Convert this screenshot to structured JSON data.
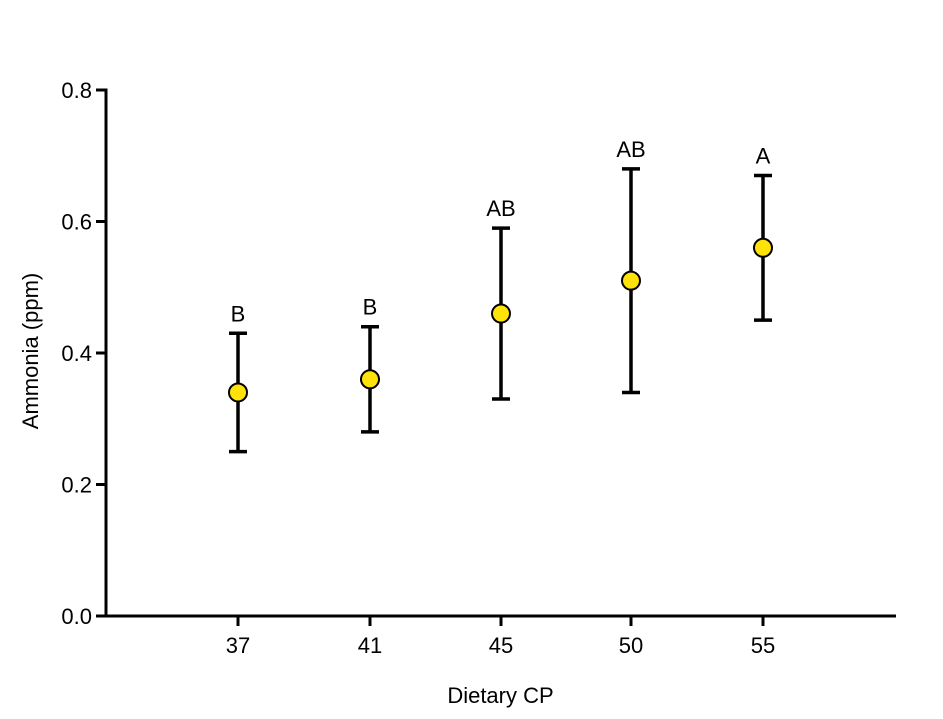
{
  "chart_data": {
    "type": "scatter",
    "xlabel": "Dietary CP",
    "ylabel": "Ammonia (ppm)",
    "ylim": [
      0,
      0.8
    ],
    "y_ticks": [
      "0.0",
      "0.2",
      "0.4",
      "0.6",
      "0.8"
    ],
    "categories": [
      "37",
      "41",
      "45",
      "50",
      "55"
    ],
    "x": [
      37,
      41,
      45,
      50,
      55
    ],
    "values": [
      0.34,
      0.36,
      0.46,
      0.51,
      0.56
    ],
    "error_low": [
      0.25,
      0.28,
      0.33,
      0.34,
      0.45
    ],
    "error_high": [
      0.43,
      0.44,
      0.59,
      0.68,
      0.67
    ],
    "annotations": [
      "B",
      "B",
      "AB",
      "AB",
      "A"
    ],
    "grid": false,
    "marker_color": "#FFE20A",
    "marker_edge_color": "#000000"
  }
}
